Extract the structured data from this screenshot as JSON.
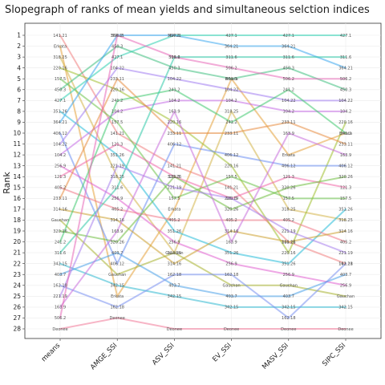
{
  "chart_data": {
    "type": "line",
    "title": "Slopegraph of ranks of mean yields and simultaneous selction indices",
    "ylabel": "Rank",
    "xlabel": "",
    "categories": [
      "means",
      "AMGE_SSI",
      "ASV_SSI",
      "EV_SSI",
      "MASV_SSI",
      "SIPC_SSI"
    ],
    "ylim": [
      1,
      28
    ],
    "y_reversed": true,
    "y_ticks": [
      1,
      2,
      3,
      4,
      5,
      6,
      7,
      8,
      9,
      10,
      11,
      12,
      13,
      14,
      15,
      16,
      17,
      18,
      19,
      20,
      21,
      22,
      23,
      24,
      25,
      26,
      27,
      28
    ],
    "grid": true,
    "legend": "none",
    "series": [
      {
        "name": "141.21",
        "values": [
          1,
          10,
          13,
          15,
          20,
          22
        ],
        "color": "#F08080"
      },
      {
        "name": "Erkata",
        "values": [
          2,
          25,
          17,
          5,
          12,
          10
        ],
        "color": "#E6A23C"
      },
      {
        "name": "318.25",
        "values": [
          3,
          14,
          21,
          8,
          17,
          18
        ],
        "color": "#D4B44A"
      },
      {
        "name": "220.16",
        "values": [
          4,
          6,
          9,
          13,
          21,
          9
        ],
        "color": "#A0C030"
      },
      {
        "name": "157.5",
        "values": [
          5,
          9,
          16,
          14,
          16,
          16
        ],
        "color": "#6CC24A"
      },
      {
        "name": "450.3",
        "values": [
          6,
          2,
          4,
          5,
          4,
          6
        ],
        "color": "#40C080"
      },
      {
        "name": "427.1",
        "values": [
          7,
          3,
          1,
          1,
          1,
          1
        ],
        "color": "#2ECFB0"
      },
      {
        "name": "351.26",
        "values": [
          8,
          12,
          19,
          21,
          22,
          17
        ],
        "color": "#26BCD8"
      },
      {
        "name": "364.21",
        "values": [
          9,
          1,
          1,
          2,
          2,
          4
        ],
        "color": "#3DA8EE"
      },
      {
        "name": "406.12",
        "values": [
          10,
          22,
          11,
          12,
          13,
          13
        ],
        "color": "#6B8EF2"
      },
      {
        "name": "104.22",
        "values": [
          11,
          4,
          5,
          6,
          7,
          7
        ],
        "color": "#A07CF0"
      },
      {
        "name": "104.2",
        "values": [
          12,
          8,
          7,
          7,
          8,
          8
        ],
        "color": "#C46CE6"
      },
      {
        "name": "256.9",
        "values": [
          13,
          16,
          20,
          22,
          23,
          24
        ],
        "color": "#E060D0"
      },
      {
        "name": "121.3",
        "values": [
          14,
          11,
          14,
          16,
          14,
          15
        ],
        "color": "#F068A8"
      },
      {
        "name": "405.2",
        "values": [
          15,
          17,
          18,
          18,
          18,
          20
        ],
        "color": "#F07888"
      },
      {
        "name": "233.11",
        "values": [
          16,
          5,
          10,
          10,
          9,
          11
        ],
        "color": "#E88C40"
      },
      {
        "name": "314.16",
        "values": [
          17,
          18,
          22,
          19,
          20,
          19
        ],
        "color": "#CCA030"
      },
      {
        "name": "Gauchan",
        "values": [
          18,
          23,
          21,
          24,
          24,
          25
        ],
        "color": "#A8B230"
      },
      {
        "name": "320.26",
        "values": [
          19,
          20,
          14,
          17,
          15,
          14
        ],
        "color": "#70BE40"
      },
      {
        "name": "241.2",
        "values": [
          20,
          7,
          6,
          9,
          6,
          10
        ],
        "color": "#40C870"
      },
      {
        "name": "311.6",
        "values": [
          21,
          15,
          3,
          3,
          3,
          3
        ],
        "color": "#30C8A8"
      },
      {
        "name": "342.15",
        "values": [
          22,
          24,
          25,
          26,
          26,
          26
        ],
        "color": "#30B8D0"
      },
      {
        "name": "403.7",
        "values": [
          23,
          21,
          24,
          25,
          25,
          23
        ],
        "color": "#4AA0E8"
      },
      {
        "name": "162.18",
        "values": [
          24,
          26,
          23,
          23,
          27,
          22
        ],
        "color": "#7890F0"
      },
      {
        "name": "221.19",
        "values": [
          25,
          13,
          15,
          16,
          19,
          21
        ],
        "color": "#A880EC"
      },
      {
        "name": "163.9",
        "values": [
          26,
          19,
          8,
          20,
          10,
          12
        ],
        "color": "#C870DC"
      },
      {
        "name": "506.2",
        "values": [
          27,
          1,
          3,
          4,
          5,
          5
        ],
        "color": "#E868B8"
      },
      {
        "name": "Deonee",
        "values": [
          28,
          27,
          28,
          28,
          28,
          28
        ],
        "color": "#F07898"
      }
    ]
  }
}
